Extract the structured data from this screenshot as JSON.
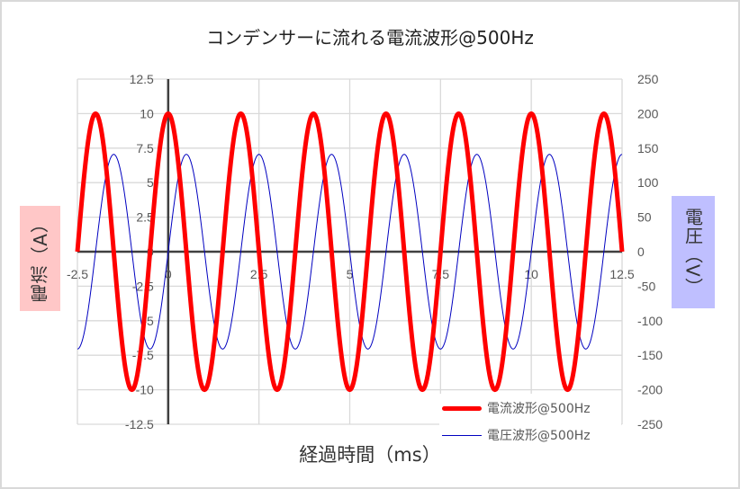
{
  "chart_data": {
    "type": "line",
    "title": "コンデンサーに流れる電流波形@500Hz",
    "xlabel": "経過時間（ms）",
    "ylabel_left": "電流（A）",
    "ylabel_right": "電圧（V）",
    "xlim": [
      -2.5,
      12.5
    ],
    "ylim_left": [
      -12.5,
      12.5
    ],
    "ylim_right": [
      -250,
      250
    ],
    "x_ticks": [
      "-2.5",
      "0",
      "2.5",
      "5",
      "7.5",
      "10",
      "12.5"
    ],
    "y_left_ticks": [
      "12.5",
      "10",
      "7.5",
      "5",
      "2.5",
      "0",
      "-2.5",
      "-5",
      "-7.5",
      "-10",
      "-12.5"
    ],
    "y_right_ticks": [
      "250",
      "200",
      "150",
      "100",
      "50",
      "0",
      "-50",
      "-100",
      "-150",
      "-200",
      "-250"
    ],
    "grid": true,
    "legend_position": "bottom-right",
    "series": [
      {
        "name": "電流波形@500Hz",
        "axis": "left",
        "color": "#FF0000",
        "line_width": 5,
        "function": "10*cos(2*pi*0.5*t)",
        "amplitude": 10,
        "frequency_hz": 500,
        "phase": "cos",
        "x": [
          -2.5,
          -2,
          -1.5,
          -1,
          -0.5,
          0,
          0.5,
          1,
          1.5,
          2,
          2.5,
          3,
          3.5,
          4,
          4.5,
          5,
          5.5,
          6,
          6.5,
          7,
          7.5,
          8,
          8.5,
          9,
          9.5,
          10,
          10.5,
          11,
          11.5,
          12,
          12.5
        ],
        "values": [
          0,
          10,
          0,
          -10,
          0,
          10,
          0,
          -10,
          0,
          10,
          0,
          -10,
          0,
          10,
          0,
          -10,
          0,
          10,
          0,
          -10,
          0,
          10,
          0,
          -10,
          0,
          10,
          0,
          -10,
          0,
          10,
          0
        ]
      },
      {
        "name": "電圧波形@500Hz",
        "axis": "right",
        "color": "#0000C0",
        "line_width": 1,
        "function": "141*sin(2*pi*0.5*t)",
        "amplitude": 141,
        "frequency_hz": 500,
        "phase": "sin",
        "x": [
          -2.5,
          -2,
          -1.5,
          -1,
          -0.5,
          0,
          0.5,
          1,
          1.5,
          2,
          2.5,
          3,
          3.5,
          4,
          4.5,
          5,
          5.5,
          6,
          6.5,
          7,
          7.5,
          8,
          8.5,
          9,
          9.5,
          10,
          10.5,
          11,
          11.5,
          12,
          12.5
        ],
        "values": [
          -141,
          0,
          141,
          0,
          -141,
          0,
          141,
          0,
          -141,
          0,
          141,
          0,
          -141,
          0,
          141,
          0,
          -141,
          0,
          141,
          0,
          -141,
          0,
          141,
          0,
          -141,
          0,
          141,
          0,
          -141,
          0,
          141
        ]
      }
    ]
  },
  "colors": {
    "left_axis_box": "#FFC7C7",
    "right_axis_box": "#BFBFFF",
    "gridline": "#D9D9D9",
    "zero_axis": "#404040"
  }
}
